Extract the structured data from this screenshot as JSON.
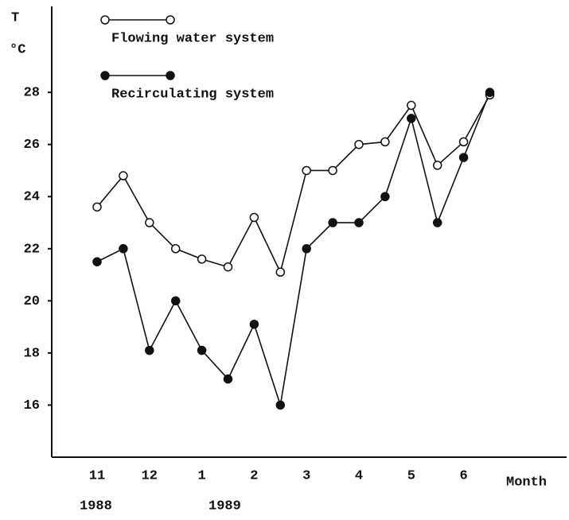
{
  "chart_data": {
    "type": "line",
    "y_label_top": "T",
    "y_label_unit": "°C",
    "x_label": "Month",
    "year_labels": [
      "1988",
      "1989"
    ],
    "categories": [
      "11",
      null,
      "12",
      null,
      "1",
      null,
      "2",
      null,
      "3",
      null,
      "4",
      null,
      "5",
      null,
      "6",
      null
    ],
    "series": [
      {
        "name": "Flowing water system",
        "color": "#111111",
        "marker": "open",
        "values": [
          23.6,
          24.8,
          23.0,
          22.0,
          21.6,
          21.3,
          23.2,
          21.1,
          25.0,
          25.0,
          26.0,
          26.1,
          27.5,
          25.2,
          26.1,
          27.9
        ]
      },
      {
        "name": "Recirculating system",
        "color": "#111111",
        "marker": "filled",
        "values": [
          21.5,
          22.0,
          18.1,
          20.0,
          18.1,
          17.0,
          19.1,
          16.0,
          22.0,
          23.0,
          23.0,
          24.0,
          27.0,
          23.0,
          25.5,
          28.0
        ]
      }
    ],
    "ylim": [
      14,
      31.3
    ],
    "yticks": [
      16,
      18,
      20,
      22,
      24,
      26,
      28
    ],
    "grid": false
  }
}
